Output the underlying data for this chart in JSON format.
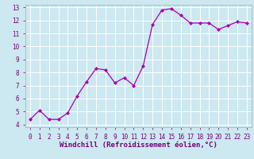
{
  "x": [
    0,
    1,
    2,
    3,
    4,
    5,
    6,
    7,
    8,
    9,
    10,
    11,
    12,
    13,
    14,
    15,
    16,
    17,
    18,
    19,
    20,
    21,
    22,
    23
  ],
  "y": [
    4.4,
    5.1,
    4.4,
    4.4,
    4.9,
    6.2,
    7.3,
    8.3,
    8.2,
    7.2,
    7.6,
    7.0,
    8.5,
    11.7,
    12.8,
    12.9,
    12.4,
    11.8,
    11.8,
    11.8,
    11.3,
    11.6,
    11.9,
    11.8
  ],
  "line_color": "#aa00aa",
  "marker": "D",
  "marker_size": 2.0,
  "bg_color": "#cce8f0",
  "grid_color": "#ffffff",
  "xlabel": "Windchill (Refroidissement éolien,°C)",
  "label_color": "#770077",
  "xlim": [
    -0.5,
    23.5
  ],
  "ylim": [
    3.8,
    13.2
  ],
  "yticks": [
    4,
    5,
    6,
    7,
    8,
    9,
    10,
    11,
    12,
    13
  ],
  "xticks": [
    0,
    1,
    2,
    3,
    4,
    5,
    6,
    7,
    8,
    9,
    10,
    11,
    12,
    13,
    14,
    15,
    16,
    17,
    18,
    19,
    20,
    21,
    22,
    23
  ],
  "tick_label_fontsize": 5.5,
  "axis_label_fontsize": 6.5,
  "spine_color": "#aaaaaa"
}
